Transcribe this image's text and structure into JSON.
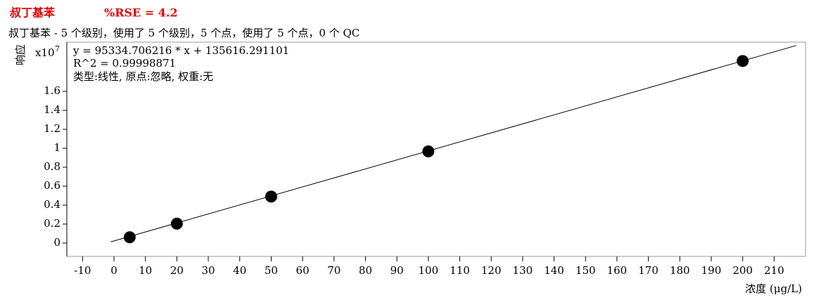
{
  "header": {
    "compound": "叔丁基苯",
    "rse": "%RSE = 4.2"
  },
  "chart_data": {
    "type": "scatter",
    "title": "叔丁基苯 - 5 个级别，使用了 5 个级别，5 个点，使用了 5 个点，0 个 QC",
    "annotations": [
      "y = 95334.706216 * x   + 135616.291101",
      "R^2 = 0.99998871",
      "类型:线性, 原点:忽略, 权重:无"
    ],
    "x_label": "浓度 (μg/L)",
    "y_label": "响应",
    "y_unit": {
      "base": "x10",
      "exponent": "7"
    },
    "x": [
      5,
      20,
      50,
      100,
      200
    ],
    "series": [
      {
        "color": "#000000",
        "values": [
          0.0612,
          0.2043,
          0.4902,
          0.9669,
          1.9203
        ]
      }
    ],
    "fit_line": {
      "x": [
        -1,
        217
      ],
      "values": [
        0.0127,
        2.0833
      ],
      "color": "#000000"
    },
    "xlim": [
      -15,
      220
    ],
    "ylim": [
      -0.141,
      2.119
    ],
    "xticks": [
      -10,
      0,
      10,
      20,
      30,
      40,
      50,
      60,
      70,
      80,
      90,
      100,
      110,
      120,
      130,
      140,
      150,
      160,
      170,
      180,
      190,
      200,
      210
    ],
    "yticks": [
      0,
      0.2,
      0.4,
      0.6,
      0.8,
      1,
      1.2,
      1.4,
      1.6
    ],
    "grid": false
  }
}
